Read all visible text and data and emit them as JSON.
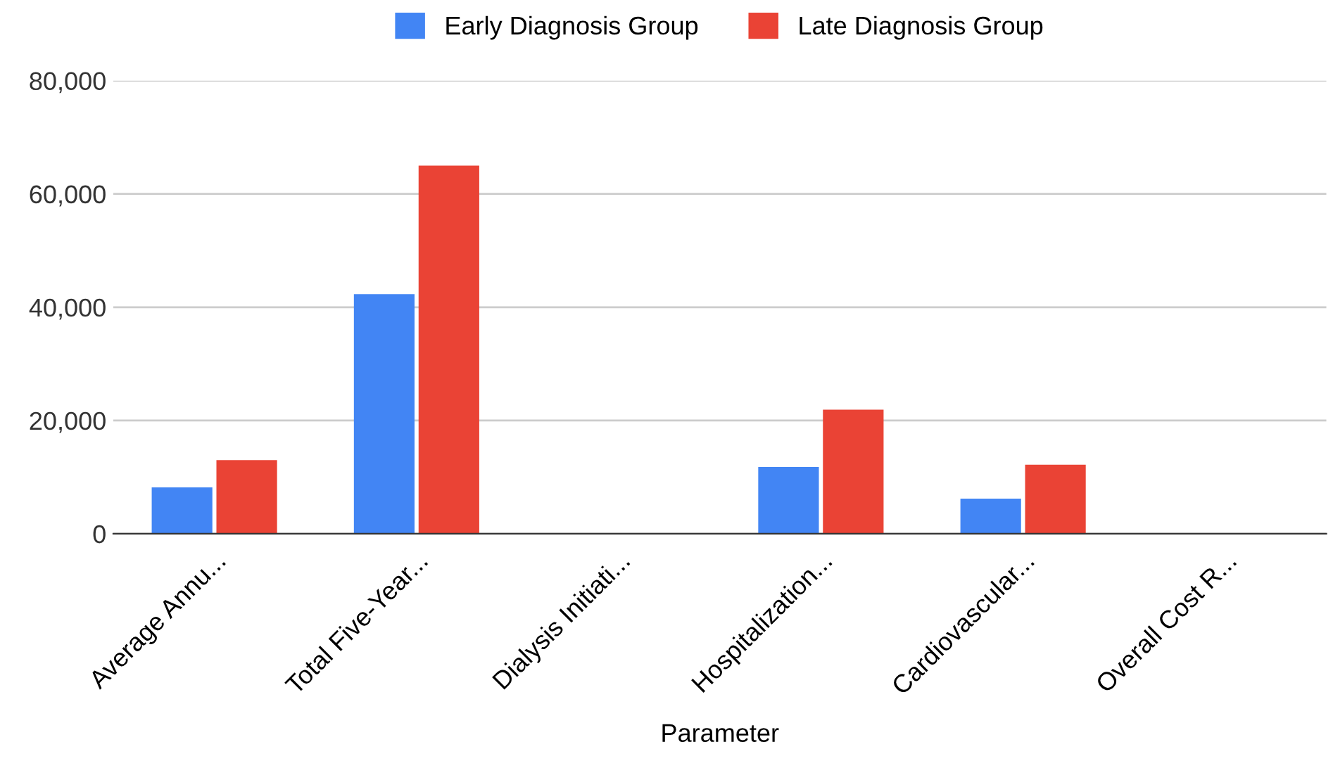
{
  "chart_data": {
    "type": "bar",
    "xlabel": "Parameter",
    "categories": [
      "Average Annu...",
      "Total Five-Year...",
      "Dialysis Initiati...",
      "Hospitalization...",
      "Cardiovascular...",
      "Overall Cost R..."
    ],
    "series": [
      {
        "name": "Early Diagnosis Group",
        "color": "#4285f4",
        "values": [
          8200,
          42300,
          0,
          11800,
          6200,
          0
        ]
      },
      {
        "name": "Late Diagnosis Group",
        "color": "#ea4335",
        "values": [
          13000,
          65000,
          0,
          21900,
          12200,
          0
        ]
      }
    ],
    "ylim": [
      0,
      80000
    ],
    "yticks": [
      {
        "value": 0,
        "label": "0"
      },
      {
        "value": 20000,
        "label": "20,000"
      },
      {
        "value": 40000,
        "label": "40,000"
      },
      {
        "value": 60000,
        "label": "60,000"
      },
      {
        "value": 80000,
        "label": "80,000"
      }
    ],
    "grid": "y",
    "legend": "top"
  }
}
